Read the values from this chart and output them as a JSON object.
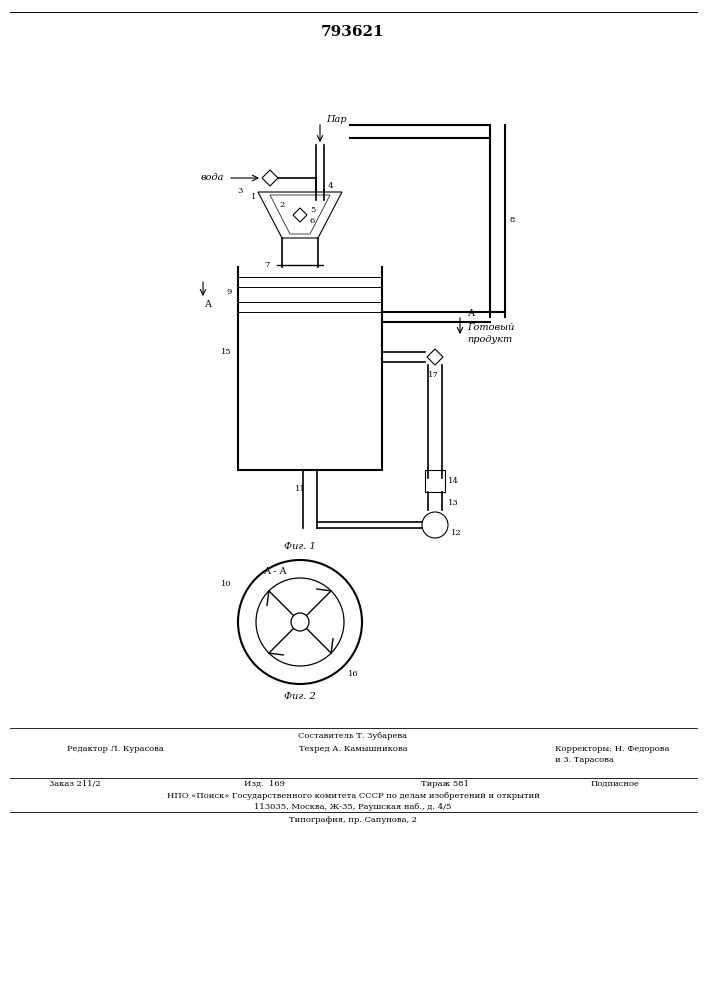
{
  "patent_number": "793621",
  "background": "#ffffff",
  "line_color": "#000000",
  "title_fontsize": 11,
  "body_fontsize": 7,
  "small_fontsize": 6,
  "fig1_caption": "Фиг. 1",
  "fig2_caption": "Фиг. 2",
  "fig2_section": "A - A",
  "label_par": "Пар",
  "label_voda": "вода",
  "label_gotovy_line1": "Готовый",
  "label_gotovy_line2": "продукт",
  "label_A": "A",
  "footer_line1": "Составитель Т. Зубарева",
  "footer_line2_left": "Редактор Л. Курасова",
  "footer_line2_center": "Техред А. Камышникова",
  "footer_line2_right": "Корректоры: Н. Федорова",
  "footer_line3_right": "и З. Тарасова",
  "footer_line4_col1": "Заказ 211/2",
  "footer_line4_col2": "Изд.  169",
  "footer_line4_col3": "Тираж 581",
  "footer_line4_col4": "Подписное",
  "footer_line5": "НПО «Поиск» Государственного комитета СССР по делам изобретений и открытий",
  "footer_line6": "113035, Москва, Ж-35, Раушская наб., д. 4/5",
  "footer_line7": "Типография, пр. Сапунова, 2"
}
